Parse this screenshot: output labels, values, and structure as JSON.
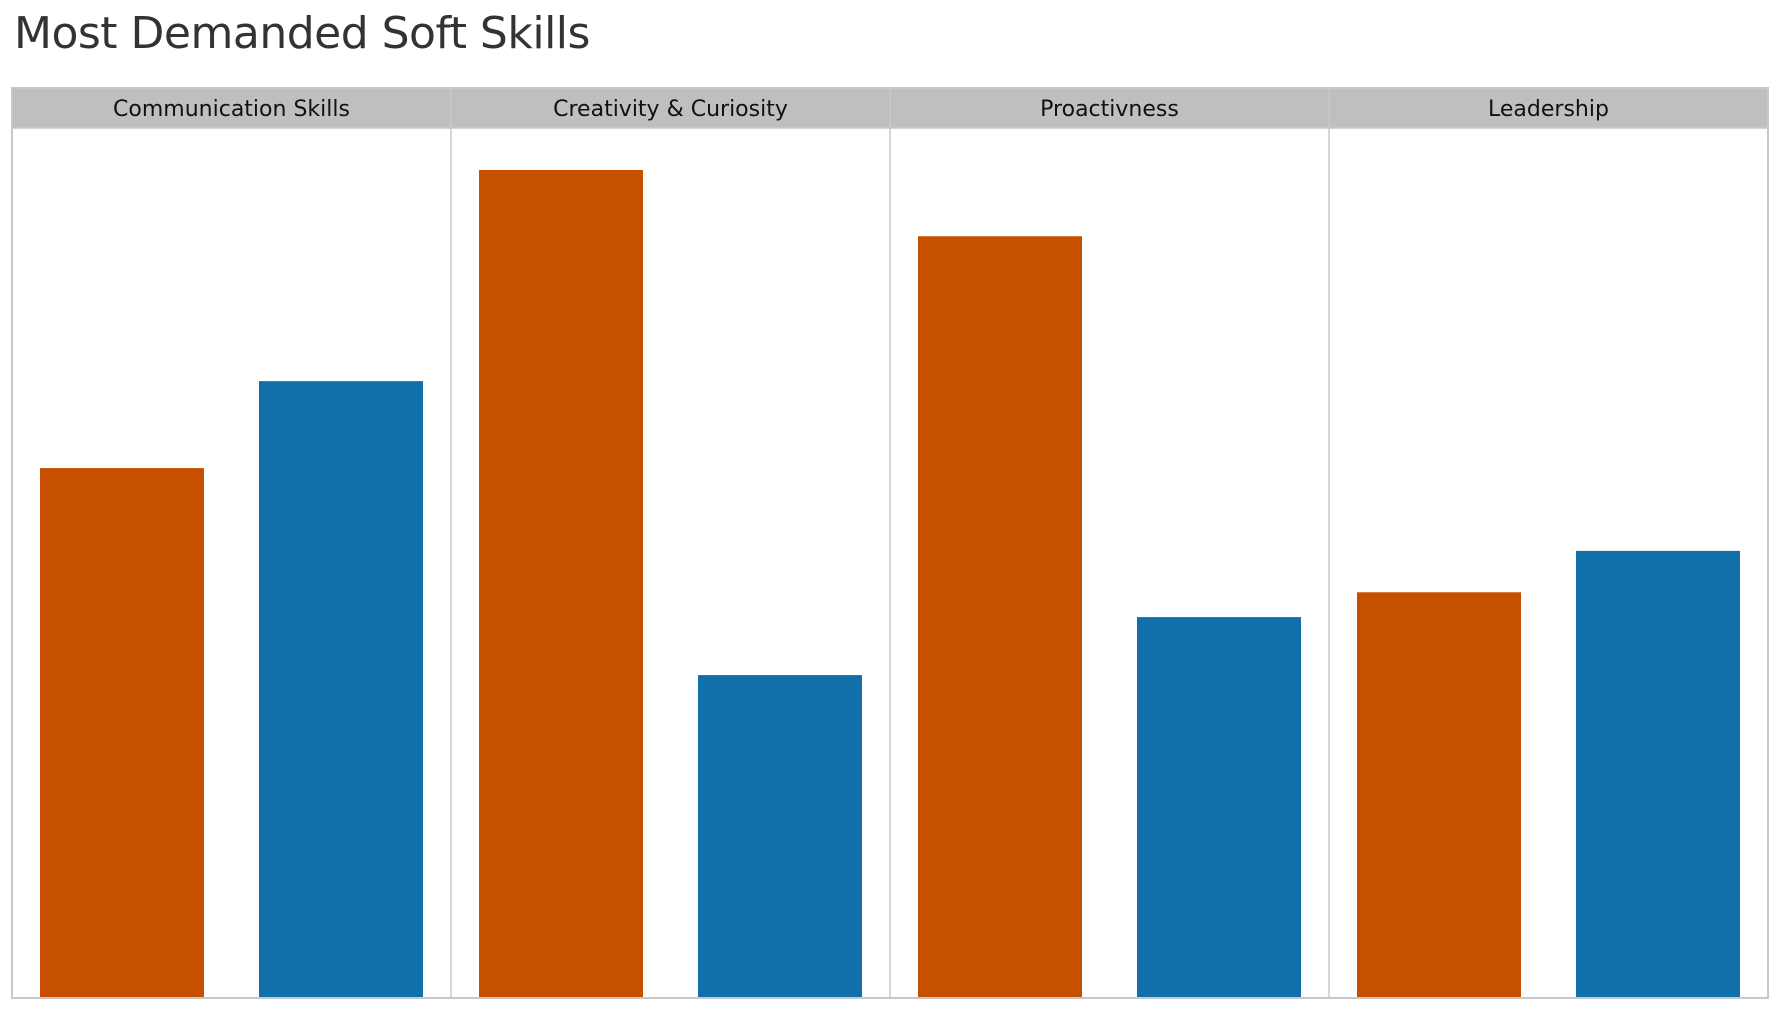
{
  "chart_data": {
    "type": "bar",
    "title": "Most Demanded Soft Skills",
    "xlabel": "",
    "ylabel": "",
    "ylim": [
      0,
      100
    ],
    "grid": false,
    "legend": "none",
    "categories": [
      "Communication Skills",
      "Creativity & Curiosity",
      "Proactivness",
      "Leadership"
    ],
    "series": [
      {
        "color": "#c75000",
        "values": [
          64,
          100,
          92,
          49
        ]
      },
      {
        "color": "#1170aa",
        "values": [
          74.5,
          39,
          46,
          54
        ]
      }
    ]
  }
}
